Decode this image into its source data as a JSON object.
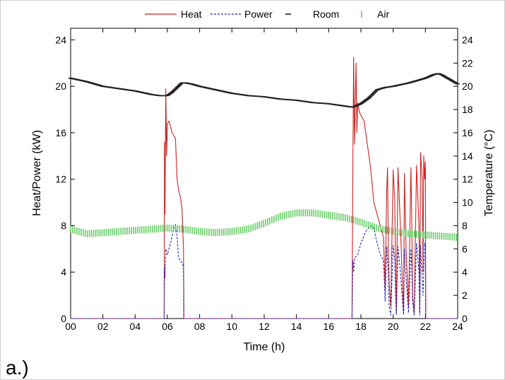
{
  "panel_label": "a.)",
  "colors": {
    "heat": "#cc2222",
    "power": "#1f2bb8",
    "room": "#222222",
    "air": "#66cc66"
  },
  "chart_data": {
    "type": "line",
    "title": "",
    "xlabel": "Time (h)",
    "ylabel_left": "Heat/Power (kW)",
    "ylabel_right": "Temperature (°C)",
    "xlim": [
      0,
      24
    ],
    "ylim_left": [
      0,
      25
    ],
    "ylim_right": [
      0,
      25
    ],
    "x_ticks": [
      0,
      2,
      4,
      6,
      8,
      10,
      12,
      14,
      16,
      18,
      20,
      22,
      24
    ],
    "x_tick_labels": [
      "00",
      "02",
      "04",
      "06",
      "08",
      "10",
      "12",
      "14",
      "16",
      "18",
      "20",
      "22",
      "24"
    ],
    "y_left_ticks": [
      0,
      4,
      8,
      12,
      16,
      20,
      24
    ],
    "y_left_tick_labels": [
      "0",
      "4",
      "8",
      "12",
      "16",
      "20",
      "24"
    ],
    "y_right_ticks": [
      0,
      2,
      4,
      6,
      8,
      10,
      12,
      14,
      16,
      18,
      20,
      22,
      24
    ],
    "y_right_tick_labels": [
      "0",
      "2",
      "4",
      "6",
      "8",
      "10",
      "12",
      "14",
      "16",
      "18",
      "20",
      "22",
      "24"
    ],
    "grid": false,
    "legend_position": "top",
    "series": [
      {
        "name": "Heat",
        "axis": "left",
        "style": "solid",
        "x": [
          0,
          5.8,
          5.82,
          5.85,
          5.9,
          5.95,
          6.0,
          6.1,
          6.2,
          6.3,
          6.5,
          6.6,
          6.7,
          6.8,
          6.9,
          7.0,
          7.02,
          7.05,
          17.45,
          17.5,
          17.55,
          17.6,
          17.7,
          17.75,
          17.8,
          17.9,
          18.0,
          18.2,
          18.4,
          18.6,
          18.8,
          19.0,
          19.2,
          19.4,
          19.5,
          19.6,
          19.65,
          19.7,
          19.75,
          19.85,
          20.0,
          20.1,
          20.15,
          20.2,
          20.3,
          20.45,
          20.6,
          20.65,
          20.7,
          20.8,
          20.95,
          21.1,
          21.15,
          21.2,
          21.3,
          21.45,
          21.6,
          21.65,
          21.7,
          21.8,
          21.85,
          21.9,
          21.95,
          22.0,
          22.02,
          22.05,
          24
        ],
        "y": [
          0,
          0,
          15.2,
          9,
          19.8,
          14,
          16.8,
          17,
          16.5,
          16,
          15.5,
          12,
          11,
          10.5,
          9.5,
          6,
          0,
          0,
          0,
          13,
          22.5,
          15,
          22,
          16,
          18.6,
          17.8,
          17.5,
          17,
          15,
          13,
          10,
          9,
          8,
          7,
          2.5,
          11,
          13,
          6,
          3,
          1,
          12.8,
          10,
          4,
          0.5,
          13,
          8,
          2,
          0.5,
          12.5,
          6,
          1,
          13,
          9,
          2,
          0.5,
          13.2,
          8,
          0.5,
          14.3,
          12,
          4,
          14,
          12,
          13.5,
          0,
          0,
          0
        ]
      },
      {
        "name": "Power",
        "axis": "left",
        "style": "dashed",
        "x": [
          0,
          5.8,
          5.82,
          5.85,
          5.9,
          6.0,
          6.2,
          6.4,
          6.5,
          6.6,
          6.7,
          6.8,
          6.9,
          7.0,
          7.02,
          7.05,
          17.45,
          17.5,
          17.55,
          17.6,
          17.8,
          18.0,
          18.3,
          18.6,
          18.8,
          19.0,
          19.2,
          19.4,
          19.5,
          19.6,
          19.7,
          19.75,
          19.85,
          20.0,
          20.1,
          20.15,
          20.2,
          20.3,
          20.45,
          20.6,
          20.65,
          20.7,
          20.8,
          20.95,
          21.1,
          21.15,
          21.2,
          21.3,
          21.45,
          21.6,
          21.65,
          21.7,
          21.85,
          21.95,
          22.0,
          22.02,
          22.05,
          24
        ],
        "y": [
          0,
          0,
          4.5,
          3.5,
          6,
          5.5,
          6.5,
          7.8,
          8.1,
          7,
          5.2,
          5,
          4.8,
          4.5,
          0,
          0,
          0,
          5,
          4,
          5.2,
          5.5,
          6.5,
          7.5,
          8,
          7.8,
          6.5,
          5.5,
          5,
          1.5,
          6.2,
          4,
          1,
          0.3,
          6.3,
          5,
          2,
          0.3,
          6.2,
          4,
          1,
          0.3,
          6,
          3.5,
          0.5,
          6,
          4.5,
          1.5,
          0.3,
          6.5,
          4,
          0.3,
          6.3,
          2,
          6.5,
          6.2,
          0,
          0,
          0
        ]
      },
      {
        "name": "Room",
        "axis": "right",
        "style": "ticks",
        "x": [
          0,
          1,
          2,
          3,
          4,
          5,
          5.5,
          6,
          6.3,
          6.6,
          6.9,
          7.1,
          7.5,
          8,
          9,
          10,
          11,
          12,
          13,
          14,
          15,
          16,
          17,
          17.5,
          18,
          18.5,
          19,
          19.5,
          20,
          21,
          22,
          22.5,
          22.8,
          23,
          23.5,
          24
        ],
        "y": [
          20.7,
          20.4,
          20.0,
          19.8,
          19.6,
          19.3,
          19.2,
          19.2,
          19.5,
          19.9,
          20.3,
          20.3,
          20.2,
          20.0,
          19.7,
          19.4,
          19.2,
          19.1,
          18.9,
          18.8,
          18.6,
          18.5,
          18.3,
          18.2,
          18.5,
          19.0,
          19.7,
          19.9,
          20.0,
          20.3,
          20.7,
          21.0,
          21.1,
          21.0,
          20.6,
          20.2
        ]
      },
      {
        "name": "Air",
        "axis": "right",
        "style": "ticks",
        "x": [
          0,
          1,
          2,
          3,
          4,
          5,
          6,
          7,
          8,
          9,
          10,
          11,
          12,
          13,
          14,
          15,
          16,
          17,
          18,
          19,
          20,
          21,
          22,
          23,
          24
        ],
        "y": [
          7.7,
          7.3,
          7.4,
          7.5,
          7.6,
          7.7,
          7.8,
          7.7,
          7.5,
          7.4,
          7.5,
          7.7,
          8.2,
          8.8,
          9.1,
          9.1,
          8.9,
          8.7,
          8.3,
          7.8,
          7.5,
          7.3,
          7.2,
          7.1,
          7.0
        ]
      }
    ]
  }
}
